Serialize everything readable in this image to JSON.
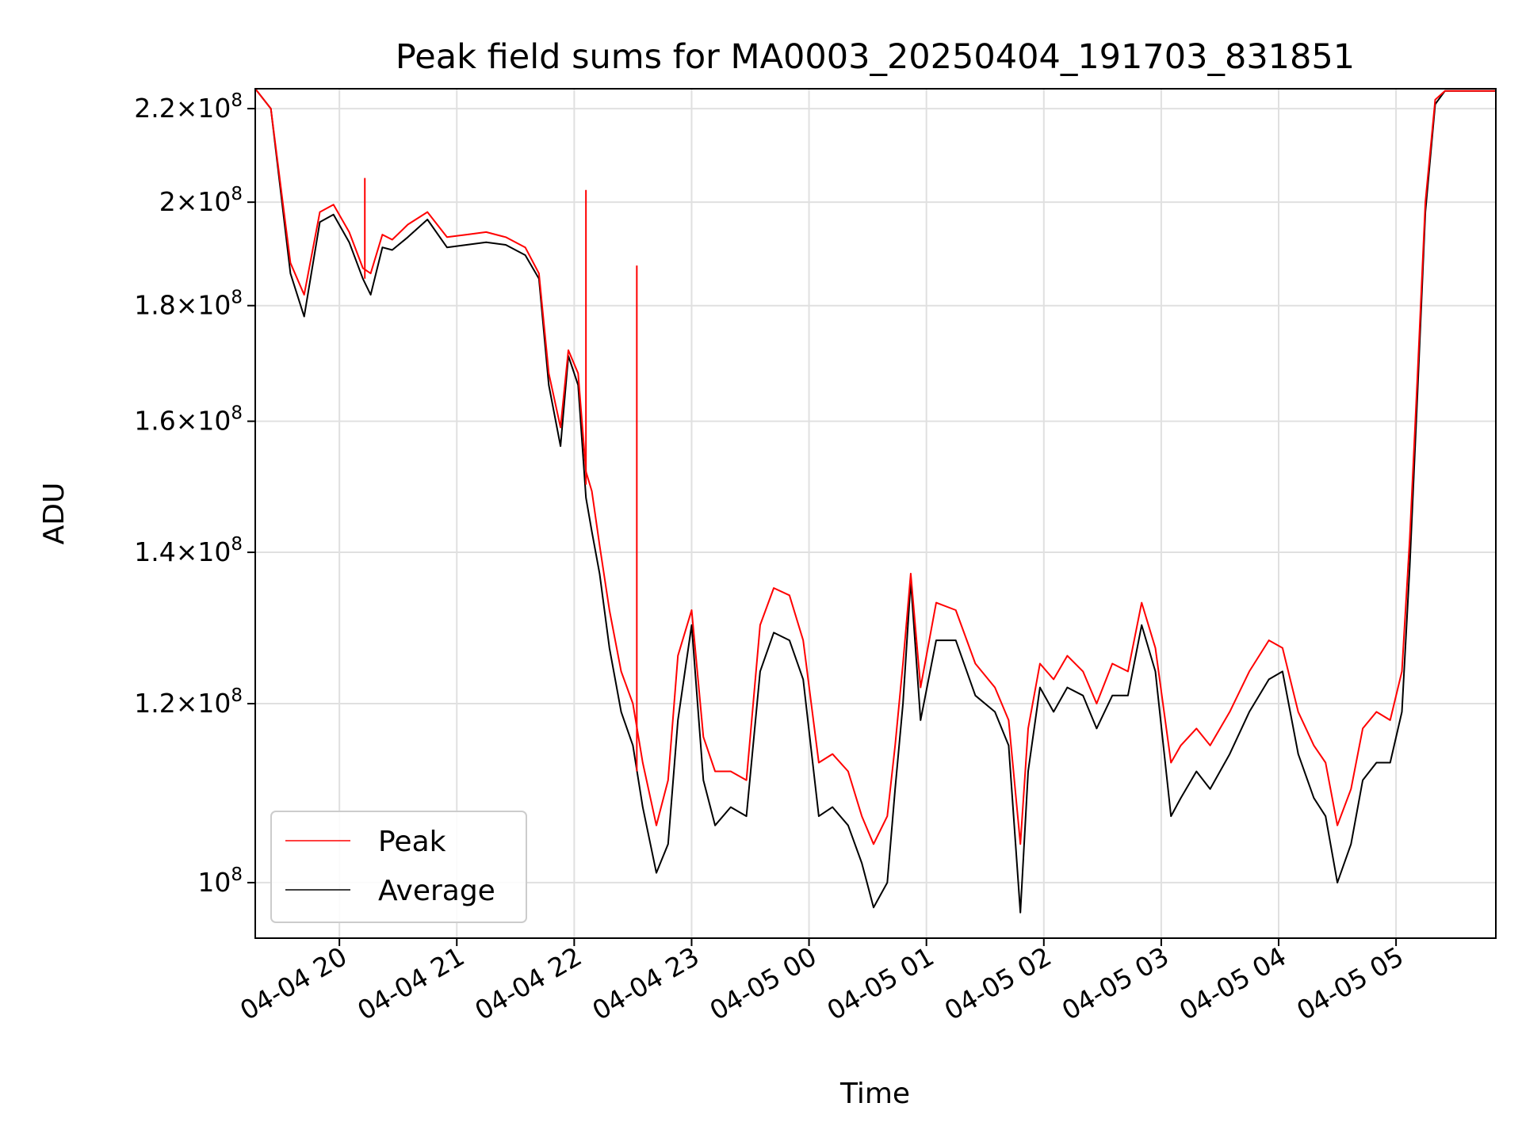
{
  "chart_data": {
    "type": "line",
    "title": "Peak field sums for MA0003_20250404_191703_831851",
    "xlabel": "Time",
    "ylabel": "ADU",
    "yscale": "log",
    "grid": true,
    "legend_position": "lower-left",
    "xlim": [
      "2025-04-04T19:17",
      "2025-04-05T05:51"
    ],
    "ylim": [
      94500000,
      224500000
    ],
    "x_ticks": [
      {
        "t": "2025-04-04T20:00",
        "label": "04-04 20"
      },
      {
        "t": "2025-04-04T21:00",
        "label": "04-04 21"
      },
      {
        "t": "2025-04-04T22:00",
        "label": "04-04 22"
      },
      {
        "t": "2025-04-04T23:00",
        "label": "04-04 23"
      },
      {
        "t": "2025-04-05T00:00",
        "label": "04-05 00"
      },
      {
        "t": "2025-04-05T01:00",
        "label": "04-05 01"
      },
      {
        "t": "2025-04-05T02:00",
        "label": "04-05 02"
      },
      {
        "t": "2025-04-05T03:00",
        "label": "04-05 03"
      },
      {
        "t": "2025-04-05T04:00",
        "label": "04-05 04"
      },
      {
        "t": "2025-04-05T05:00",
        "label": "04-05 05"
      }
    ],
    "y_ticks": [
      {
        "v": 100000000,
        "mant": "",
        "exp": "8"
      },
      {
        "v": 120000000,
        "mant": "1.2",
        "exp": "8"
      },
      {
        "v": 140000000,
        "mant": "1.4",
        "exp": "8"
      },
      {
        "v": 160000000,
        "mant": "1.6",
        "exp": "8"
      },
      {
        "v": 180000000,
        "mant": "1.8",
        "exp": "8"
      },
      {
        "v": 200000000,
        "mant": "2",
        "exp": "8"
      },
      {
        "v": 220000000,
        "mant": "2.2",
        "exp": "8"
      }
    ],
    "series": [
      {
        "name": "Peak",
        "color": "#ff0000",
        "x": [
          "2025-04-04T19:17",
          "2025-04-04T19:25",
          "2025-04-04T19:35",
          "2025-04-04T19:42",
          "2025-04-04T19:50",
          "2025-04-04T19:57",
          "2025-04-04T20:05",
          "2025-04-04T20:12",
          "2025-04-04T20:16",
          "2025-04-04T20:22",
          "2025-04-04T20:27",
          "2025-04-04T20:35",
          "2025-04-04T20:45",
          "2025-04-04T20:55",
          "2025-04-04T21:05",
          "2025-04-04T21:15",
          "2025-04-04T21:25",
          "2025-04-04T21:35",
          "2025-04-04T21:42",
          "2025-04-04T21:47",
          "2025-04-04T21:53",
          "2025-04-04T21:57",
          "2025-04-04T22:02",
          "2025-04-04T22:06",
          "2025-04-04T22:09",
          "2025-04-04T22:13",
          "2025-04-04T22:18",
          "2025-04-04T22:24",
          "2025-04-04T22:30",
          "2025-04-04T22:35",
          "2025-04-04T22:42",
          "2025-04-04T22:48",
          "2025-04-04T22:53",
          "2025-04-04T23:00",
          "2025-04-04T23:06",
          "2025-04-04T23:12",
          "2025-04-04T23:20",
          "2025-04-04T23:28",
          "2025-04-04T23:35",
          "2025-04-04T23:42",
          "2025-04-04T23:50",
          "2025-04-04T23:57",
          "2025-04-05T00:05",
          "2025-04-05T00:12",
          "2025-04-05T00:20",
          "2025-04-05T00:27",
          "2025-04-05T00:33",
          "2025-04-05T00:40",
          "2025-04-05T00:44",
          "2025-04-05T00:48",
          "2025-04-05T00:52",
          "2025-04-05T00:57",
          "2025-04-05T01:05",
          "2025-04-05T01:15",
          "2025-04-05T01:25",
          "2025-04-05T01:35",
          "2025-04-05T01:42",
          "2025-04-05T01:48",
          "2025-04-05T01:52",
          "2025-04-05T01:58",
          "2025-04-05T02:05",
          "2025-04-05T02:12",
          "2025-04-05T02:20",
          "2025-04-05T02:27",
          "2025-04-05T02:35",
          "2025-04-05T02:43",
          "2025-04-05T02:50",
          "2025-04-05T02:57",
          "2025-04-05T03:05",
          "2025-04-05T03:10",
          "2025-04-05T03:18",
          "2025-04-05T03:25",
          "2025-04-05T03:35",
          "2025-04-05T03:45",
          "2025-04-05T03:55",
          "2025-04-05T04:02",
          "2025-04-05T04:10",
          "2025-04-05T04:18",
          "2025-04-05T04:24",
          "2025-04-05T04:30",
          "2025-04-05T04:37",
          "2025-04-05T04:43",
          "2025-04-05T04:50",
          "2025-04-05T04:57",
          "2025-04-05T05:03",
          "2025-04-05T05:07",
          "2025-04-05T05:11",
          "2025-04-05T05:15",
          "2025-04-05T05:20",
          "2025-04-05T05:25",
          "2025-04-05T05:51"
        ],
        "y": [
          224500000,
          220000000,
          188000000,
          182000000,
          198000000,
          199500000,
          194000000,
          187000000,
          186000000,
          193500000,
          192500000,
          195500000,
          198000000,
          193000000,
          193500000,
          194000000,
          193000000,
          191000000,
          186000000,
          168000000,
          159000000,
          172000000,
          168000000,
          152000000,
          149000000,
          141000000,
          132000000,
          124000000,
          120000000,
          113000000,
          106000000,
          111000000,
          126000000,
          132000000,
          116000000,
          112000000,
          112000000,
          111000000,
          130000000,
          135000000,
          134000000,
          128000000,
          113000000,
          114000000,
          112000000,
          107000000,
          104000000,
          107000000,
          115000000,
          125000000,
          137000000,
          122000000,
          133000000,
          132000000,
          125000000,
          122000000,
          118000000,
          104000000,
          117000000,
          125000000,
          123000000,
          126000000,
          124000000,
          120000000,
          125000000,
          124000000,
          133000000,
          127000000,
          113000000,
          115000000,
          117000000,
          115000000,
          119000000,
          124000000,
          128000000,
          127000000,
          119000000,
          115000000,
          113000000,
          106000000,
          110000000,
          117000000,
          119000000,
          118000000,
          124000000,
          142000000,
          168000000,
          200000000,
          222000000,
          224000000,
          224000000
        ]
      },
      {
        "name": "Average",
        "color": "#000000",
        "x": [
          "2025-04-04T19:17",
          "2025-04-04T19:25",
          "2025-04-04T19:35",
          "2025-04-04T19:42",
          "2025-04-04T19:50",
          "2025-04-04T19:57",
          "2025-04-04T20:05",
          "2025-04-04T20:12",
          "2025-04-04T20:16",
          "2025-04-04T20:22",
          "2025-04-04T20:27",
          "2025-04-04T20:35",
          "2025-04-04T20:45",
          "2025-04-04T20:55",
          "2025-04-04T21:05",
          "2025-04-04T21:15",
          "2025-04-04T21:25",
          "2025-04-04T21:35",
          "2025-04-04T21:42",
          "2025-04-04T21:47",
          "2025-04-04T21:53",
          "2025-04-04T21:57",
          "2025-04-04T22:02",
          "2025-04-04T22:06",
          "2025-04-04T22:09",
          "2025-04-04T22:13",
          "2025-04-04T22:18",
          "2025-04-04T22:24",
          "2025-04-04T22:30",
          "2025-04-04T22:35",
          "2025-04-04T22:42",
          "2025-04-04T22:48",
          "2025-04-04T22:53",
          "2025-04-04T23:00",
          "2025-04-04T23:06",
          "2025-04-04T23:12",
          "2025-04-04T23:20",
          "2025-04-04T23:28",
          "2025-04-04T23:35",
          "2025-04-04T23:42",
          "2025-04-04T23:50",
          "2025-04-04T23:57",
          "2025-04-05T00:05",
          "2025-04-05T00:12",
          "2025-04-05T00:20",
          "2025-04-05T00:27",
          "2025-04-05T00:33",
          "2025-04-05T00:40",
          "2025-04-05T00:44",
          "2025-04-05T00:48",
          "2025-04-05T00:52",
          "2025-04-05T00:57",
          "2025-04-05T01:05",
          "2025-04-05T01:15",
          "2025-04-05T01:25",
          "2025-04-05T01:35",
          "2025-04-05T01:42",
          "2025-04-05T01:48",
          "2025-04-05T01:52",
          "2025-04-05T01:58",
          "2025-04-05T02:05",
          "2025-04-05T02:12",
          "2025-04-05T02:20",
          "2025-04-05T02:27",
          "2025-04-05T02:35",
          "2025-04-05T02:43",
          "2025-04-05T02:50",
          "2025-04-05T02:57",
          "2025-04-05T03:05",
          "2025-04-05T03:10",
          "2025-04-05T03:18",
          "2025-04-05T03:25",
          "2025-04-05T03:35",
          "2025-04-05T03:45",
          "2025-04-05T03:55",
          "2025-04-05T04:02",
          "2025-04-05T04:10",
          "2025-04-05T04:18",
          "2025-04-05T04:24",
          "2025-04-05T04:30",
          "2025-04-05T04:37",
          "2025-04-05T04:43",
          "2025-04-05T04:50",
          "2025-04-05T04:57",
          "2025-04-05T05:03",
          "2025-04-05T05:07",
          "2025-04-05T05:11",
          "2025-04-05T05:15",
          "2025-04-05T05:20",
          "2025-04-05T05:25",
          "2025-04-05T05:51"
        ],
        "y": [
          224500000,
          220000000,
          186000000,
          178000000,
          196000000,
          197500000,
          192000000,
          185000000,
          182000000,
          191000000,
          190500000,
          193000000,
          196500000,
          191000000,
          191500000,
          192000000,
          191500000,
          189500000,
          185000000,
          166000000,
          156000000,
          171000000,
          166000000,
          148000000,
          143000000,
          137000000,
          127000000,
          119000000,
          115000000,
          108000000,
          101000000,
          104000000,
          118000000,
          130000000,
          111000000,
          106000000,
          108000000,
          107000000,
          124000000,
          129000000,
          128000000,
          123000000,
          107000000,
          108000000,
          106000000,
          102000000,
          97500000,
          100000000,
          110000000,
          120000000,
          136000000,
          118000000,
          128000000,
          128000000,
          121000000,
          119000000,
          115000000,
          97000000,
          112000000,
          122000000,
          119000000,
          122000000,
          121000000,
          117000000,
          121000000,
          121000000,
          130000000,
          124000000,
          107000000,
          109000000,
          112000000,
          110000000,
          114000000,
          119000000,
          123000000,
          124000000,
          114000000,
          109000000,
          107000000,
          100000000,
          104000000,
          111000000,
          113000000,
          113000000,
          119000000,
          138000000,
          165000000,
          198000000,
          221000000,
          224000000,
          224000000
        ]
      }
    ],
    "spikes": [
      {
        "series": "Peak",
        "t": "2025-04-04T20:13",
        "from": 185000000,
        "to": 205000000
      },
      {
        "series": "Peak",
        "t": "2025-04-04T22:06",
        "from": 150000000,
        "to": 202500000
      },
      {
        "series": "Peak",
        "t": "2025-04-04T22:32",
        "from": 112000000,
        "to": 187500000
      }
    ]
  }
}
